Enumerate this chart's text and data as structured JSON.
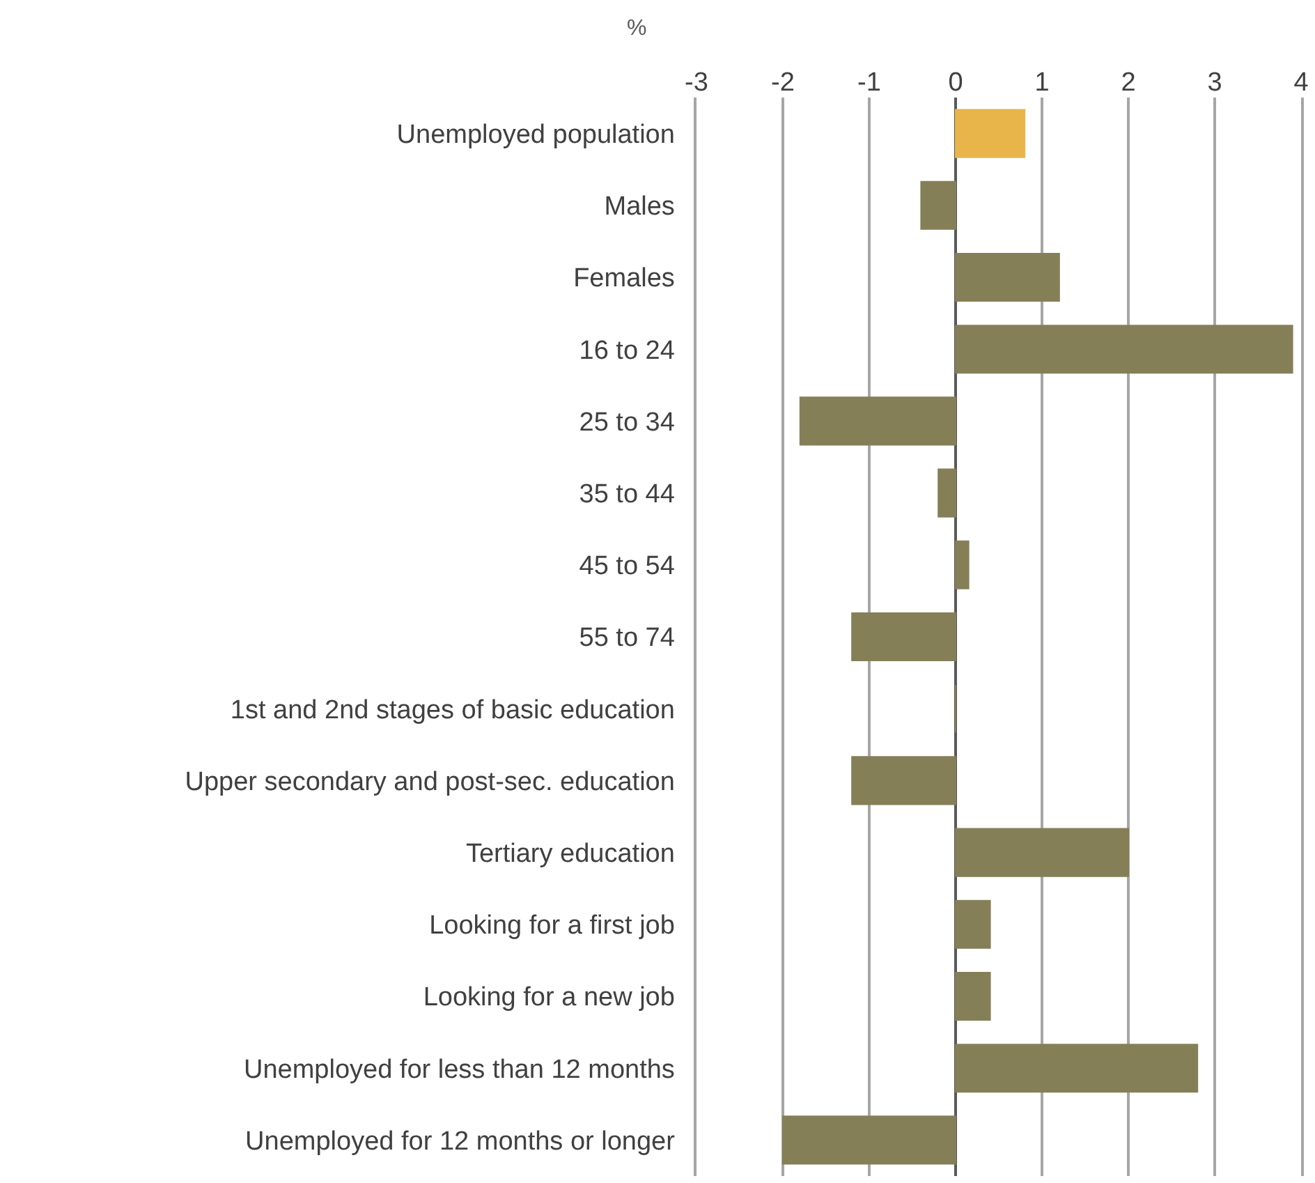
{
  "chart_data": {
    "type": "bar",
    "orientation": "horizontal",
    "xlabel": "%",
    "categories": [
      "Unemployed population",
      "Males",
      "Females",
      "16 to 24",
      "25 to 34",
      "35 to 44",
      "45 to 54",
      "55 to 74",
      "1st and 2nd stages of basic education",
      "Upper secondary and post-sec. education",
      "Tertiary education",
      "Looking for a first job",
      "Looking for a new job",
      "Unemployed for less than 12 months",
      "Unemployed for 12 months or longer"
    ],
    "values": [
      0.8,
      -0.4,
      1.2,
      3.9,
      -1.8,
      -0.2,
      0.15,
      -1.2,
      0.0,
      -1.2,
      2.0,
      0.4,
      0.4,
      2.8,
      -2.0
    ],
    "colors": [
      "#e8b54a",
      "#857f58",
      "#857f58",
      "#857f58",
      "#857f58",
      "#857f58",
      "#857f58",
      "#857f58",
      "#857f58",
      "#857f58",
      "#857f58",
      "#857f58",
      "#857f58",
      "#857f58",
      "#857f58"
    ],
    "xlim": [
      -3,
      4
    ],
    "xticks": [
      -3,
      -2,
      -1,
      0,
      1,
      2,
      3,
      4
    ],
    "grid": "x"
  }
}
